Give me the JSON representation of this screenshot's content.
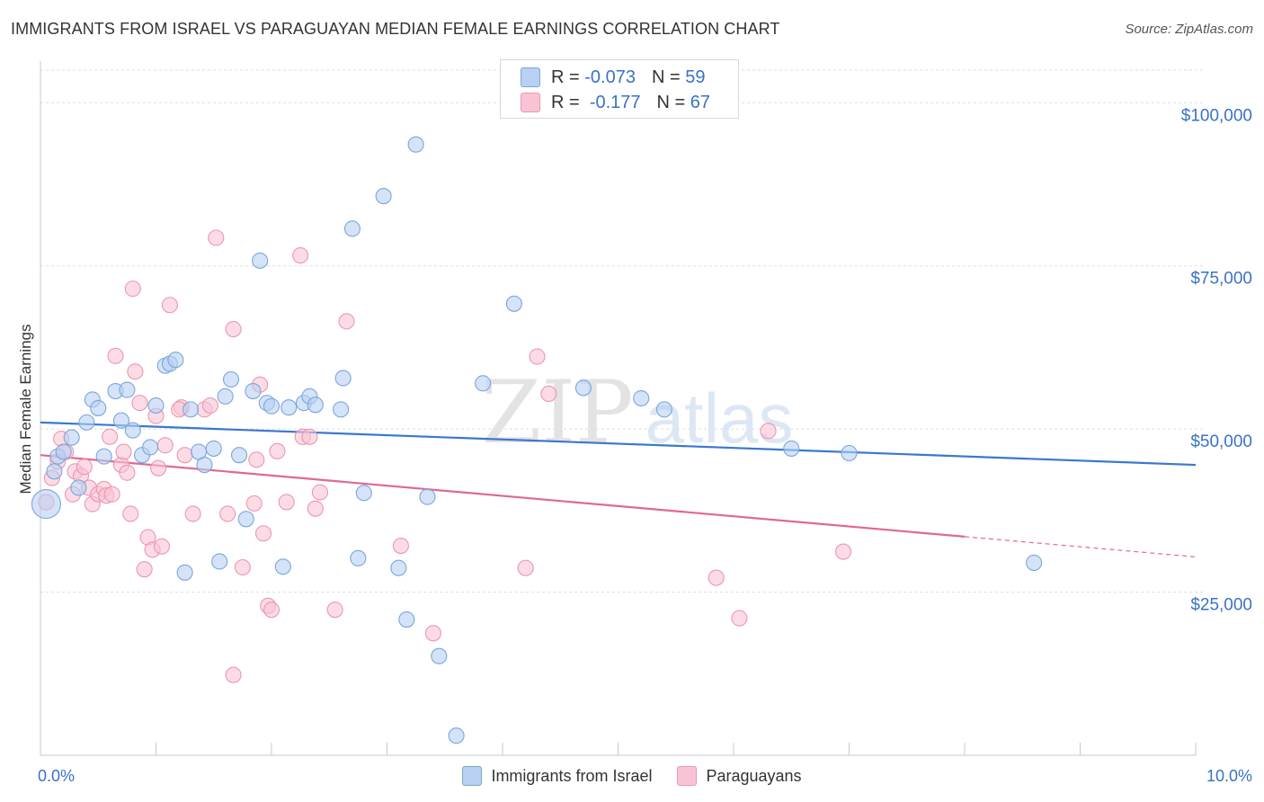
{
  "title": "IMMIGRANTS FROM ISRAEL VS PARAGUAYAN MEDIAN FEMALE EARNINGS CORRELATION CHART",
  "source": "Source: ZipAtlas.com",
  "watermark": {
    "zip": "ZIP",
    "atlas": "atlas"
  },
  "legend_top": {
    "rows": [
      {
        "r_label": "R =",
        "r_value": "-0.073",
        "n_label": "N =",
        "n_value": "59"
      },
      {
        "r_label": "R =",
        "r_value": "-0.177",
        "n_label": "N =",
        "n_value": "67"
      }
    ]
  },
  "colors": {
    "blue_fill": "#b8d0f2",
    "blue_stroke": "#7aa6de",
    "blue_line": "#3a78d0",
    "pink_fill": "#f8c4d4",
    "pink_stroke": "#ec96b2",
    "pink_line": "#e06892",
    "tick_text": "#3a72c4",
    "grid": "#dddddd"
  },
  "chart_data": {
    "type": "scatter",
    "title": "IMMIGRANTS FROM ISRAEL VS PARAGUAYAN MEDIAN FEMALE EARNINGS CORRELATION CHART",
    "xlabel": "",
    "ylabel": "Median Female Earnings",
    "xlim": [
      0,
      10
    ],
    "ylim": [
      0,
      105000
    ],
    "x_tick_labels": [
      "0.0%",
      "10.0%"
    ],
    "y_ticks": [
      25000,
      50000,
      75000,
      100000
    ],
    "y_tick_labels": [
      "$25,000",
      "$50,000",
      "$75,000",
      "$100,000"
    ],
    "grid": true,
    "legend_position": "bottom",
    "series": [
      {
        "name": "Immigrants from Israel",
        "color": "#7aa6de",
        "trend": {
          "x": [
            0,
            10
          ],
          "y": [
            51000,
            44500
          ]
        },
        "points": [
          [
            0.05,
            38500
          ],
          [
            0.12,
            43500
          ],
          [
            0.15,
            45800
          ],
          [
            0.2,
            46500
          ],
          [
            0.27,
            48700
          ],
          [
            0.33,
            41000
          ],
          [
            0.4,
            51000
          ],
          [
            0.45,
            54500
          ],
          [
            0.5,
            53200
          ],
          [
            0.55,
            45800
          ],
          [
            0.65,
            55800
          ],
          [
            0.7,
            51300
          ],
          [
            0.75,
            56000
          ],
          [
            0.8,
            49800
          ],
          [
            0.88,
            46000
          ],
          [
            0.95,
            47200
          ],
          [
            1.0,
            53600
          ],
          [
            1.08,
            59700
          ],
          [
            1.12,
            60000
          ],
          [
            1.17,
            60600
          ],
          [
            1.25,
            28000
          ],
          [
            1.3,
            53000
          ],
          [
            1.37,
            46500
          ],
          [
            1.42,
            44500
          ],
          [
            1.5,
            47000
          ],
          [
            1.55,
            29700
          ],
          [
            1.6,
            55000
          ],
          [
            1.65,
            57600
          ],
          [
            1.72,
            46000
          ],
          [
            1.78,
            36200
          ],
          [
            1.84,
            55800
          ],
          [
            1.9,
            75800
          ],
          [
            1.96,
            54000
          ],
          [
            2.0,
            53500
          ],
          [
            2.1,
            28900
          ],
          [
            2.15,
            53300
          ],
          [
            2.28,
            54000
          ],
          [
            2.33,
            55000
          ],
          [
            2.38,
            53700
          ],
          [
            2.6,
            53000
          ],
          [
            2.62,
            57800
          ],
          [
            2.7,
            80700
          ],
          [
            2.75,
            30200
          ],
          [
            2.8,
            40200
          ],
          [
            2.97,
            85700
          ],
          [
            3.1,
            28700
          ],
          [
            3.17,
            20800
          ],
          [
            3.25,
            93600
          ],
          [
            3.35,
            39600
          ],
          [
            3.45,
            15200
          ],
          [
            3.6,
            3000
          ],
          [
            3.83,
            57000
          ],
          [
            4.1,
            69200
          ],
          [
            4.7,
            56300
          ],
          [
            5.2,
            54700
          ],
          [
            5.4,
            53000
          ],
          [
            6.5,
            47000
          ],
          [
            7.0,
            46300
          ],
          [
            8.6,
            29500
          ]
        ]
      },
      {
        "name": "Paraguayans",
        "color": "#ec96b2",
        "trend": {
          "x": [
            0,
            8
          ],
          "y": [
            46000,
            33500
          ]
        },
        "trend_dashed": {
          "x": [
            8,
            10
          ],
          "y": [
            33500,
            30400
          ]
        },
        "points": [
          [
            0.05,
            38800
          ],
          [
            0.1,
            42500
          ],
          [
            0.15,
            45000
          ],
          [
            0.18,
            48500
          ],
          [
            0.22,
            46500
          ],
          [
            0.28,
            40000
          ],
          [
            0.3,
            43500
          ],
          [
            0.35,
            42800
          ],
          [
            0.38,
            44200
          ],
          [
            0.42,
            41000
          ],
          [
            0.45,
            38500
          ],
          [
            0.5,
            40000
          ],
          [
            0.55,
            40800
          ],
          [
            0.57,
            39800
          ],
          [
            0.6,
            48800
          ],
          [
            0.62,
            40000
          ],
          [
            0.65,
            61200
          ],
          [
            0.7,
            44500
          ],
          [
            0.72,
            46500
          ],
          [
            0.75,
            43300
          ],
          [
            0.78,
            37000
          ],
          [
            0.8,
            71500
          ],
          [
            0.82,
            58800
          ],
          [
            0.86,
            54000
          ],
          [
            0.9,
            28500
          ],
          [
            0.93,
            33400
          ],
          [
            0.97,
            31500
          ],
          [
            1.0,
            52000
          ],
          [
            1.02,
            44000
          ],
          [
            1.05,
            32000
          ],
          [
            1.08,
            47500
          ],
          [
            1.12,
            69000
          ],
          [
            1.22,
            53300
          ],
          [
            1.25,
            46000
          ],
          [
            1.32,
            37000
          ],
          [
            1.42,
            53000
          ],
          [
            1.47,
            53600
          ],
          [
            1.52,
            79300
          ],
          [
            1.62,
            37000
          ],
          [
            1.67,
            65300
          ],
          [
            1.75,
            28800
          ],
          [
            1.85,
            38600
          ],
          [
            1.87,
            45300
          ],
          [
            1.9,
            56800
          ],
          [
            1.93,
            34000
          ],
          [
            1.97,
            22900
          ],
          [
            2.0,
            22300
          ],
          [
            2.05,
            46600
          ],
          [
            2.13,
            38800
          ],
          [
            2.25,
            76600
          ],
          [
            2.27,
            48800
          ],
          [
            2.33,
            48800
          ],
          [
            2.38,
            37800
          ],
          [
            2.42,
            40300
          ],
          [
            2.55,
            22300
          ],
          [
            2.65,
            66500
          ],
          [
            3.12,
            32100
          ],
          [
            3.4,
            18700
          ],
          [
            4.2,
            28700
          ],
          [
            4.3,
            61100
          ],
          [
            4.4,
            55400
          ],
          [
            5.85,
            27200
          ],
          [
            6.05,
            21000
          ],
          [
            6.3,
            49700
          ],
          [
            6.95,
            31200
          ],
          [
            1.67,
            12300
          ],
          [
            1.2,
            53000
          ]
        ]
      }
    ]
  }
}
